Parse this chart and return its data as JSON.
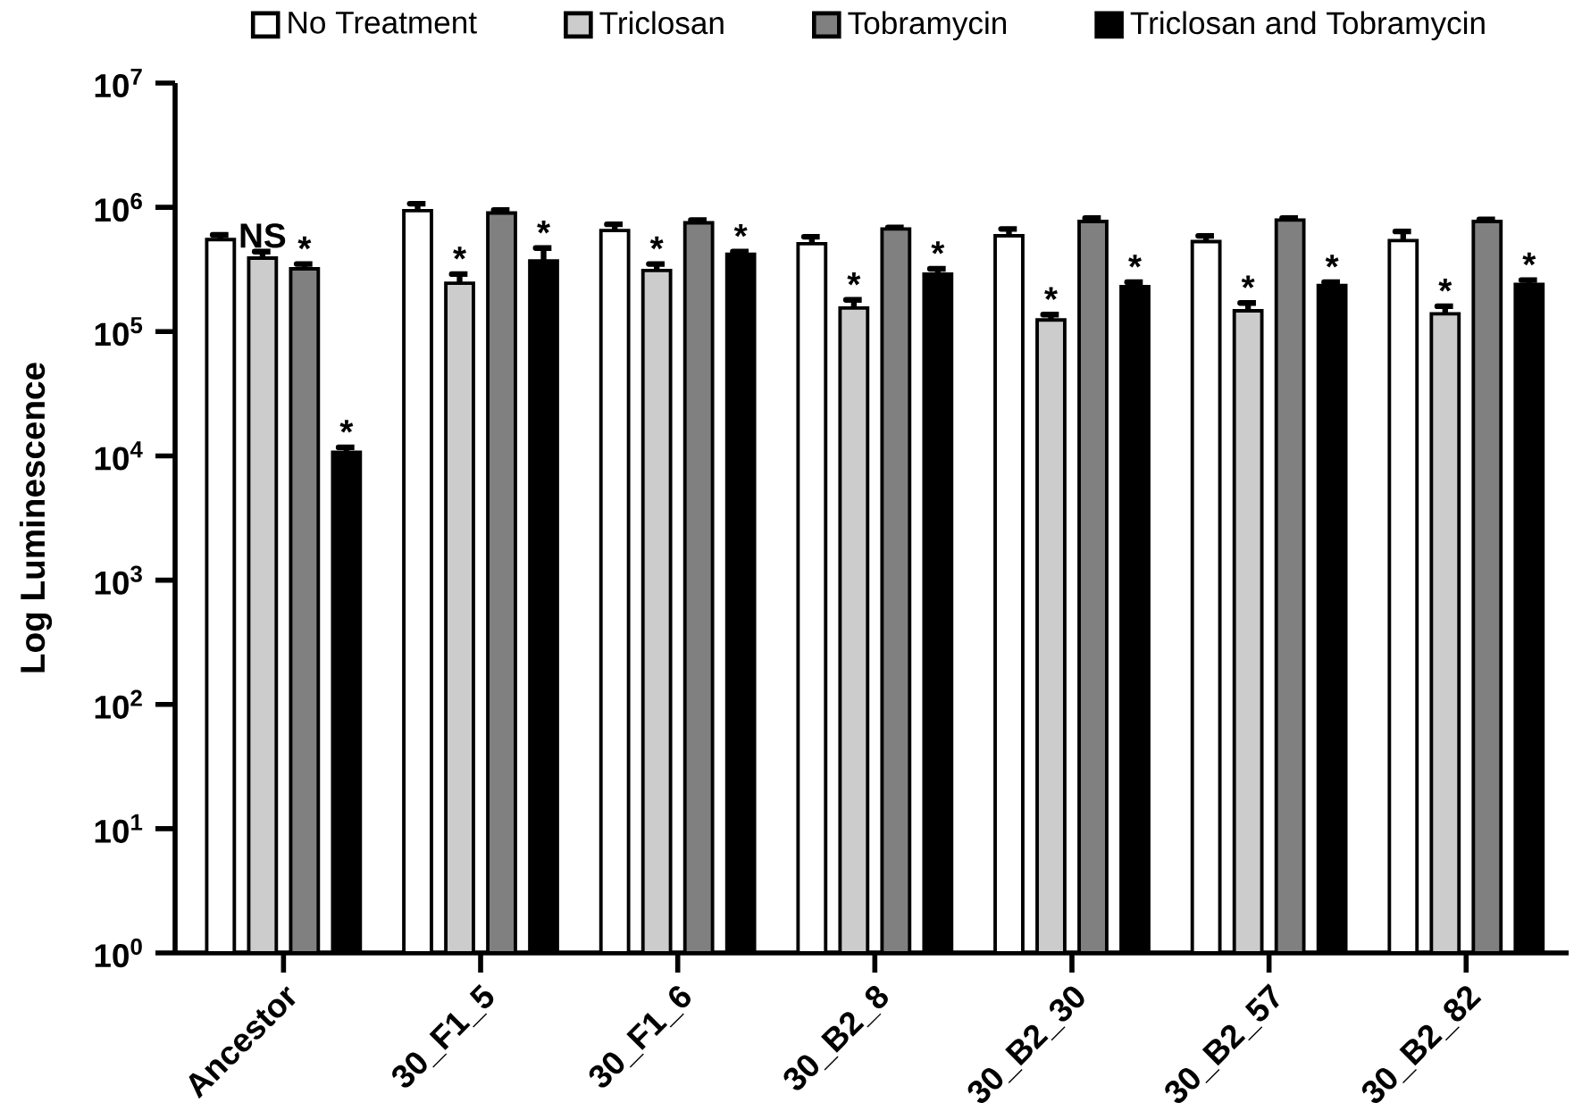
{
  "chart_data": {
    "type": "bar",
    "ylabel": "Log Luminescence",
    "log": true,
    "legend": "top",
    "grid": false,
    "categories": [
      "Ancestor",
      "30_F1_5",
      "30_F1_6",
      "30_B2_8",
      "30_B2_30",
      "30_B2_57",
      "30_B2_82"
    ],
    "ylim": [
      1,
      10000000
    ],
    "yticks": [
      {
        "value": 1,
        "label": "10$^{0}$"
      },
      {
        "value": 10,
        "label": "10$^{1}$"
      },
      {
        "value": 100,
        "label": "10$^{2}$"
      },
      {
        "value": 1000,
        "label": "10$^{3}$"
      },
      {
        "value": 10000,
        "label": "10$^{4}$"
      },
      {
        "value": 100000,
        "label": "10$^{5}$"
      },
      {
        "value": 1000000,
        "label": "10$^{6}$"
      },
      {
        "value": 10000000,
        "label": "10$^{7}$"
      }
    ],
    "series": [
      {
        "name": "No Treatment",
        "color": "#ffffff",
        "values": [
          550000,
          940000,
          650000,
          510000,
          590000,
          530000,
          540000
        ],
        "errors": [
          [
            550000,
            600000
          ],
          [
            940000,
            1070000
          ],
          [
            650000,
            730000
          ],
          [
            510000,
            580000
          ],
          [
            590000,
            670000
          ],
          [
            530000,
            590000
          ],
          [
            540000,
            640000
          ]
        ]
      },
      {
        "name": "Triclosan",
        "color": "#cccccc",
        "values": [
          390000,
          245000,
          310000,
          155000,
          124000,
          147000,
          139000
        ],
        "errors": [
          [
            390000,
            440000
          ],
          [
            245000,
            290000
          ],
          [
            310000,
            350000
          ],
          [
            155000,
            180000
          ],
          [
            124000,
            137000
          ],
          [
            147000,
            170000
          ],
          [
            139000,
            160000
          ]
        ],
        "value_labels": [
          "NS",
          "*",
          "*",
          "*",
          "*",
          "*",
          "*"
        ]
      },
      {
        "name": "Tobramycin",
        "color": "#808080",
        "values": [
          320000,
          900000,
          750000,
          670000,
          770000,
          790000,
          770000
        ],
        "errors": [
          [
            320000,
            350000
          ],
          [
            900000,
            950000
          ],
          [
            750000,
            790000
          ],
          [
            670000,
            690000
          ],
          [
            770000,
            820000
          ],
          [
            790000,
            820000
          ],
          [
            770000,
            800000
          ]
        ],
        "value_labels": [
          "*",
          null,
          null,
          null,
          null,
          null,
          null
        ]
      },
      {
        "name": "Triclosan and Tobramycin",
        "color": "#000000",
        "values": [
          10700,
          370000,
          420000,
          290000,
          230000,
          235000,
          240000
        ],
        "errors": [
          [
            10700,
            11700
          ],
          [
            370000,
            470000
          ],
          [
            420000,
            440000
          ],
          [
            290000,
            320000
          ],
          [
            230000,
            250000
          ],
          [
            235000,
            250000
          ],
          [
            240000,
            260000
          ]
        ],
        "value_labels": [
          "*",
          "*",
          "*",
          "*",
          "*",
          "*",
          "*"
        ]
      }
    ]
  }
}
